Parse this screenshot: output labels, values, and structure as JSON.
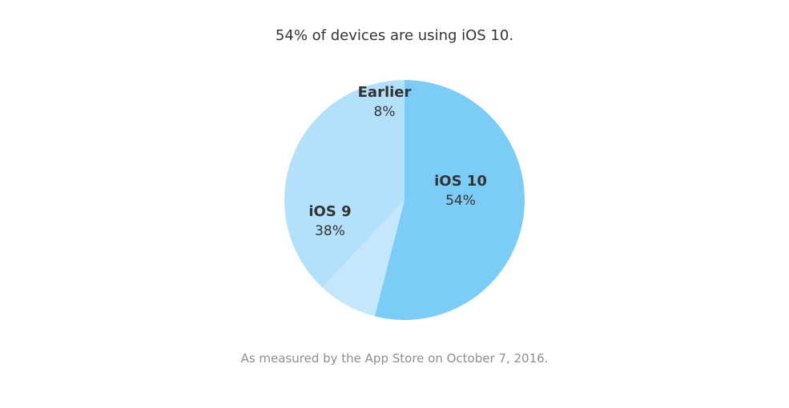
{
  "headline": "54% of devices are using iOS 10.",
  "footnote": "As measured by the App Store on October 7, 2016.",
  "chart_data": {
    "type": "pie",
    "title": "54% of devices are using iOS 10.",
    "slices": [
      {
        "label": "iOS 10",
        "value": 54,
        "value_label": "54%",
        "color": "#7bcdf8"
      },
      {
        "label": "Earlier",
        "value": 8,
        "value_label": "8%",
        "color": "#c4e7fb"
      },
      {
        "label": "iOS 9",
        "value": 38,
        "value_label": "38%",
        "color": "#b3e0fa"
      }
    ],
    "start": "12 o'clock",
    "direction": "clockwise",
    "legend": "none (inline slice labels)"
  }
}
